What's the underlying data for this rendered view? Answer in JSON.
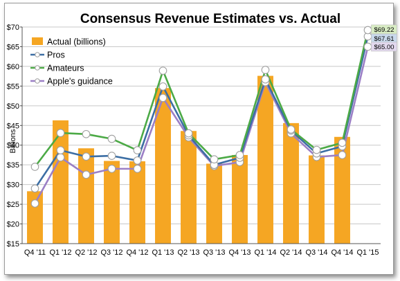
{
  "chart_data": {
    "type": "bar",
    "title": "Consensus Revenue Estimates vs. Actual",
    "ylabel": "Billions",
    "xlabel": "",
    "ylim": [
      15,
      70
    ],
    "y_ticks": [
      "$15",
      "$20",
      "$25",
      "$30",
      "$35",
      "$40",
      "$45",
      "$50",
      "$55",
      "$60",
      "$65",
      "$70"
    ],
    "grid": true,
    "legend_position": "top-left",
    "categories": [
      "Q4 '11",
      "Q1 '12",
      "Q2 '12",
      "Q3 '12",
      "Q4 '12",
      "Q1 '13",
      "Q2 '13",
      "Q3 '13",
      "Q4 '13",
      "Q1 '14",
      "Q2 '14",
      "Q3 '14",
      "Q4 '14",
      "Q1 '15"
    ],
    "bars": {
      "name": "Actual (billions)",
      "color": "#f5a623",
      "values": [
        28.3,
        46.3,
        39.2,
        36.0,
        35.9,
        54.5,
        43.6,
        35.3,
        37.5,
        57.6,
        45.6,
        37.4,
        42.1,
        null
      ]
    },
    "series": [
      {
        "name": "Pros",
        "color": "#3c6ea4",
        "values": [
          29.0,
          38.7,
          37.1,
          37.3,
          36.1,
          54.9,
          42.5,
          35.0,
          36.8,
          56.7,
          43.7,
          37.9,
          39.7,
          67.61
        ]
      },
      {
        "name": "Amateurs",
        "color": "#4caa46",
        "values": [
          34.5,
          43.1,
          42.8,
          41.6,
          38.7,
          58.9,
          43.0,
          36.4,
          37.5,
          59.1,
          44.0,
          38.8,
          40.6,
          69.22
        ]
      },
      {
        "name": "Apple's guidance",
        "color": "#9b7fc6",
        "values": [
          25.2,
          36.9,
          32.5,
          34.0,
          34.0,
          52.0,
          42.0,
          34.7,
          35.7,
          56.0,
          43.0,
          37.0,
          37.5,
          65.0
        ]
      }
    ],
    "callouts": [
      {
        "text": "$69.22",
        "fill": "#d8ecc4"
      },
      {
        "text": "$67.61",
        "fill": "#c9d9ec"
      },
      {
        "text": "$65.00",
        "fill": "#e2d8ee"
      }
    ]
  }
}
